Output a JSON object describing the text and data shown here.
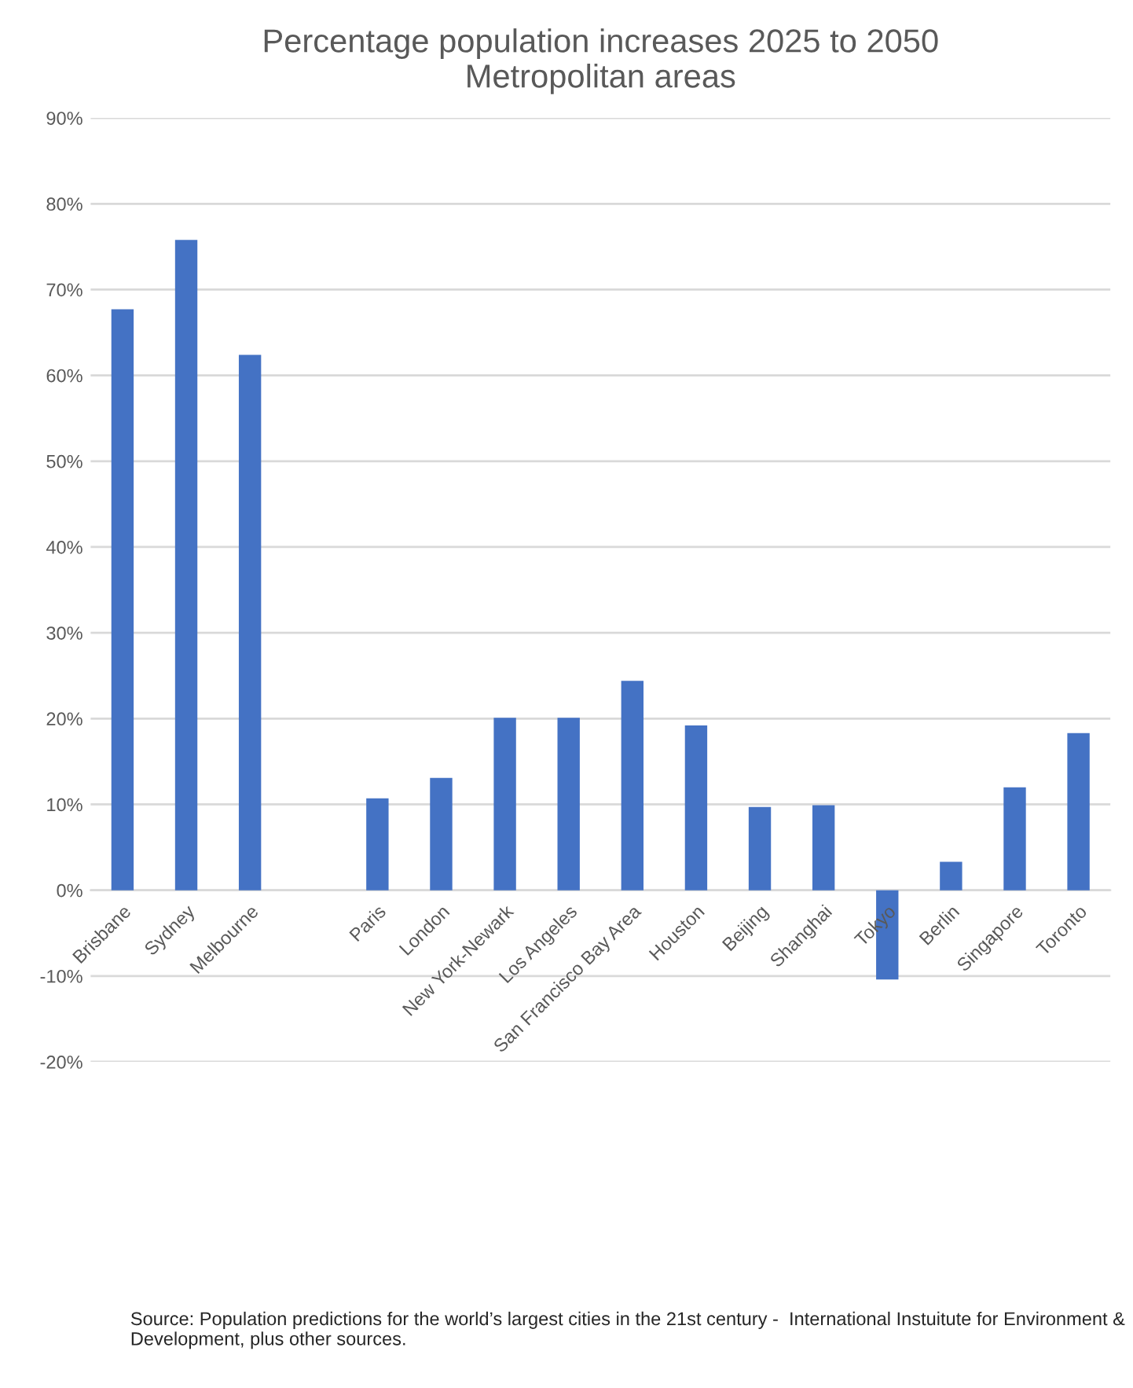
{
  "chart_data": {
    "type": "bar",
    "title": "Percentage population increases 2025 to 2050\nMetropolitan areas",
    "categories": [
      "Brisbane",
      "Sydney",
      "Melbourne",
      null,
      "Paris",
      "London",
      "New York-Newark",
      "Los Angeles",
      "San Francisco Bay Area",
      "Houston",
      "Beijing",
      "Shanghai",
      "Tokyo",
      "Berlin",
      "Singapore",
      "Toronto"
    ],
    "values": [
      67.7,
      75.8,
      62.4,
      null,
      10.7,
      13.1,
      20.1,
      20.1,
      24.4,
      19.2,
      9.7,
      9.9,
      -10.4,
      3.3,
      12.0,
      18.3
    ],
    "color": "#4472c4",
    "ylim": [
      -20,
      90
    ],
    "yticks": [
      {
        "value": -20,
        "label": "-20%"
      },
      {
        "value": -10,
        "label": "-10%"
      },
      {
        "value": 0,
        "label": "0%"
      },
      {
        "value": 10,
        "label": "10%"
      },
      {
        "value": 20,
        "label": "20%"
      },
      {
        "value": 30,
        "label": "30%"
      },
      {
        "value": 40,
        "label": "40%"
      },
      {
        "value": 50,
        "label": "50%"
      },
      {
        "value": 60,
        "label": "60%"
      },
      {
        "value": 70,
        "label": "70%"
      },
      {
        "value": 80,
        "label": "80%"
      },
      {
        "value": 90,
        "label": "90%"
      }
    ],
    "grid": "y",
    "annotations": [
      "Source: Population predictions for the world’s largest cities in the 21st century -  International Instuitute for Environment & Development, plus other sources."
    ]
  }
}
